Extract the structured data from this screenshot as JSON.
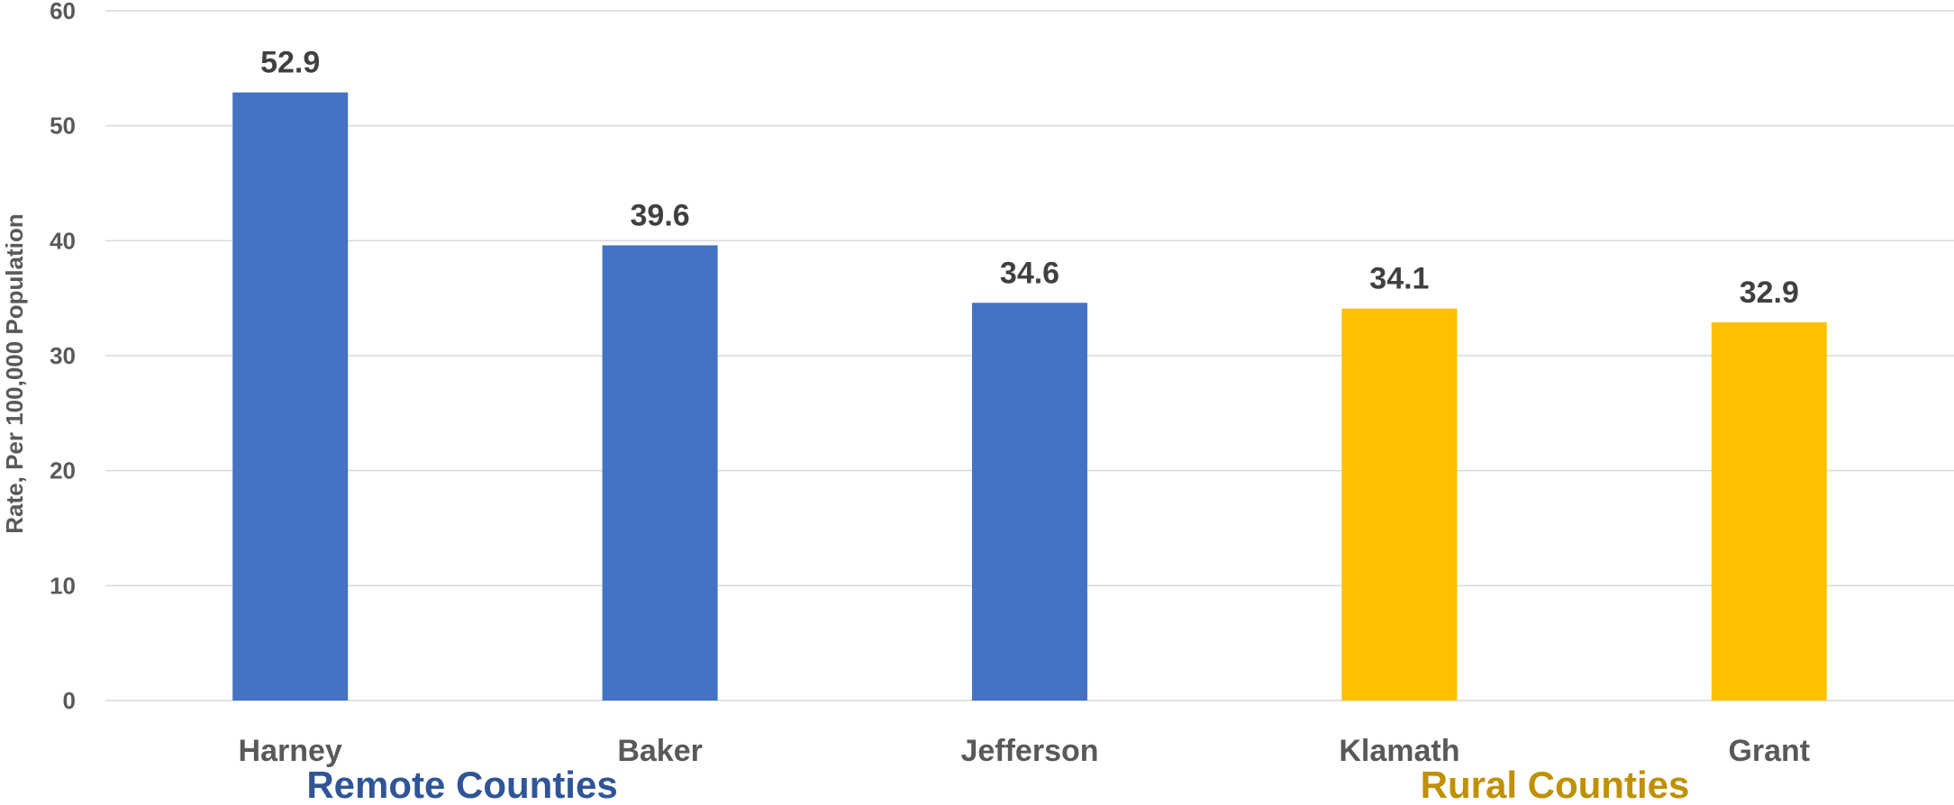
{
  "chart_data": {
    "type": "bar",
    "categories": [
      "Harney",
      "Baker",
      "Jefferson",
      "Klamath",
      "Grant"
    ],
    "values": [
      52.9,
      39.6,
      34.6,
      34.1,
      32.9
    ],
    "value_labels": [
      "52.9",
      "39.6",
      "34.6",
      "34.1",
      "32.9"
    ],
    "bar_groups": [
      "remote",
      "remote",
      "remote",
      "rural",
      "rural"
    ],
    "ylabel": "Rate, Per 100,000 Population",
    "xlabel": "",
    "title": "",
    "ylim": [
      0,
      60
    ],
    "yticks": [
      0,
      10,
      20,
      30,
      40,
      50,
      60
    ],
    "grid": true,
    "groups": [
      {
        "key": "remote",
        "label": "Remote Counties",
        "color": "#4472C4",
        "label_color": "#2F5597",
        "categories": [
          "Harney",
          "Baker",
          "Jefferson"
        ]
      },
      {
        "key": "rural",
        "label": "Rural Counties",
        "color": "#FFC000",
        "label_color": "#BF9000",
        "categories": [
          "Klamath",
          "Grant"
        ]
      }
    ]
  }
}
